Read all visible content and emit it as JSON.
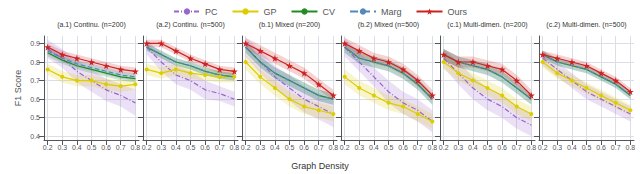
{
  "chart_data": [
    {
      "type": "line",
      "title": "(a.1) Continu. (n=200)",
      "xlabel": "Graph Density",
      "ylabel": "F1 Score",
      "legend": "top",
      "x": [
        0.2,
        0.3,
        0.4,
        0.5,
        0.6,
        0.7,
        0.8
      ],
      "xlim": [
        0.175,
        0.825
      ],
      "xticks": [
        0.2,
        0.3,
        0.4,
        0.5,
        0.6,
        0.7,
        0.8
      ],
      "ylim": [
        0.38,
        0.94
      ],
      "yticks": [
        0.4,
        0.5,
        0.6,
        0.7,
        0.8,
        0.9
      ],
      "grid": true,
      "series": [
        {
          "name": "PC",
          "color": "#9966cc",
          "line_style": "dashdot",
          "marker": "none",
          "values": [
            0.87,
            0.82,
            0.75,
            0.7,
            0.65,
            0.62,
            0.58
          ],
          "std": [
            0.05,
            0.05,
            0.06,
            0.06,
            0.06,
            0.06,
            0.07
          ]
        },
        {
          "name": "GP",
          "color": "#ddcc00",
          "line_style": "solid",
          "marker": "circle",
          "values": [
            0.76,
            0.72,
            0.7,
            0.7,
            0.68,
            0.67,
            0.68
          ],
          "std": [
            0.03,
            0.03,
            0.03,
            0.03,
            0.03,
            0.03,
            0.03
          ]
        },
        {
          "name": "CV",
          "color": "#228B22",
          "line_style": "solid",
          "marker": "none",
          "values": [
            0.85,
            0.81,
            0.78,
            0.76,
            0.74,
            0.72,
            0.71
          ],
          "std": [
            0.02,
            0.02,
            0.02,
            0.02,
            0.02,
            0.02,
            0.02
          ]
        },
        {
          "name": "Marg",
          "color": "#5588bb",
          "line_style": "dashed",
          "marker": "none",
          "values": [
            0.86,
            0.82,
            0.79,
            0.77,
            0.75,
            0.73,
            0.72
          ],
          "std": [
            0.02,
            0.02,
            0.02,
            0.02,
            0.02,
            0.02,
            0.02
          ]
        },
        {
          "name": "Ours",
          "color": "#cc2222",
          "line_style": "solid",
          "marker": "star",
          "values": [
            0.88,
            0.84,
            0.82,
            0.8,
            0.78,
            0.76,
            0.75
          ],
          "std": [
            0.02,
            0.02,
            0.02,
            0.02,
            0.02,
            0.02,
            0.02
          ]
        }
      ]
    },
    {
      "type": "line",
      "title": "(a.2) Continu. (n=500)",
      "tick_labels": "x",
      "x": [
        0.2,
        0.3,
        0.4,
        0.5,
        0.6,
        0.7,
        0.8
      ],
      "xlim": [
        0.175,
        0.825
      ],
      "xticks": [
        0.2,
        0.3,
        0.4,
        0.5,
        0.6,
        0.7,
        0.8
      ],
      "ylim": [
        0.38,
        0.94
      ],
      "yticks": [
        0.4,
        0.5,
        0.6,
        0.7,
        0.8,
        0.9
      ],
      "grid": true,
      "series": [
        {
          "name": "PC",
          "color": "#9966cc",
          "line_style": "dashdot",
          "marker": "none",
          "values": [
            0.88,
            0.8,
            0.73,
            0.7,
            0.65,
            0.63,
            0.6
          ],
          "std": [
            0.04,
            0.05,
            0.05,
            0.05,
            0.05,
            0.04,
            0.04
          ]
        },
        {
          "name": "GP",
          "color": "#ddcc00",
          "line_style": "solid",
          "marker": "circle",
          "values": [
            0.76,
            0.74,
            0.76,
            0.74,
            0.73,
            0.72,
            0.72
          ],
          "std": [
            0.03,
            0.03,
            0.03,
            0.03,
            0.03,
            0.03,
            0.03
          ]
        },
        {
          "name": "CV",
          "color": "#228B22",
          "line_style": "solid",
          "marker": "none",
          "values": [
            0.88,
            0.84,
            0.8,
            0.78,
            0.75,
            0.73,
            0.72
          ],
          "std": [
            0.02,
            0.02,
            0.02,
            0.02,
            0.02,
            0.02,
            0.02
          ]
        },
        {
          "name": "Marg",
          "color": "#5588bb",
          "line_style": "dashed",
          "marker": "none",
          "values": [
            0.88,
            0.84,
            0.8,
            0.78,
            0.75,
            0.73,
            0.72
          ],
          "std": [
            0.02,
            0.02,
            0.02,
            0.02,
            0.02,
            0.02,
            0.02
          ]
        },
        {
          "name": "Ours",
          "color": "#cc2222",
          "line_style": "solid",
          "marker": "star",
          "values": [
            0.9,
            0.9,
            0.86,
            0.82,
            0.79,
            0.76,
            0.75
          ],
          "std": [
            0.02,
            0.02,
            0.02,
            0.02,
            0.02,
            0.02,
            0.02
          ]
        }
      ]
    },
    {
      "type": "line",
      "title": "(b.1) Mixed (n=200)",
      "tick_labels": "x",
      "x": [
        0.2,
        0.3,
        0.4,
        0.5,
        0.6,
        0.7,
        0.8
      ],
      "xlim": [
        0.175,
        0.825
      ],
      "xticks": [
        0.2,
        0.3,
        0.4,
        0.5,
        0.6,
        0.7,
        0.8
      ],
      "ylim": [
        0.38,
        0.94
      ],
      "yticks": [
        0.4,
        0.5,
        0.6,
        0.7,
        0.8,
        0.9
      ],
      "grid": true,
      "series": [
        {
          "name": "PC",
          "color": "#9966cc",
          "line_style": "dashdot",
          "marker": "none",
          "values": [
            0.88,
            0.8,
            0.72,
            0.66,
            0.6,
            0.56,
            0.52
          ],
          "std": [
            0.05,
            0.06,
            0.06,
            0.07,
            0.07,
            0.07,
            0.07
          ]
        },
        {
          "name": "GP",
          "color": "#ddcc00",
          "line_style": "solid",
          "marker": "circle",
          "values": [
            0.8,
            0.72,
            0.66,
            0.6,
            0.56,
            0.54,
            0.52
          ],
          "std": [
            0.04,
            0.04,
            0.04,
            0.04,
            0.04,
            0.04,
            0.04
          ]
        },
        {
          "name": "CV",
          "color": "#228B22",
          "line_style": "solid",
          "marker": "none",
          "values": [
            0.88,
            0.8,
            0.74,
            0.7,
            0.66,
            0.62,
            0.6
          ],
          "std": [
            0.03,
            0.03,
            0.03,
            0.03,
            0.03,
            0.03,
            0.03
          ]
        },
        {
          "name": "Marg",
          "color": "#5588bb",
          "line_style": "dashed",
          "marker": "none",
          "values": [
            0.88,
            0.8,
            0.74,
            0.7,
            0.66,
            0.62,
            0.6
          ],
          "std": [
            0.03,
            0.03,
            0.03,
            0.03,
            0.03,
            0.03,
            0.03
          ]
        },
        {
          "name": "Ours",
          "color": "#cc2222",
          "line_style": "solid",
          "marker": "star",
          "values": [
            0.9,
            0.86,
            0.82,
            0.78,
            0.74,
            0.68,
            0.62
          ],
          "std": [
            0.03,
            0.03,
            0.03,
            0.03,
            0.03,
            0.03,
            0.03
          ]
        }
      ]
    },
    {
      "type": "line",
      "title": "(b.2) Mixed (n=500)",
      "tick_labels": "x",
      "x": [
        0.2,
        0.3,
        0.4,
        0.5,
        0.6,
        0.7,
        0.8
      ],
      "xlim": [
        0.175,
        0.825
      ],
      "xticks": [
        0.2,
        0.3,
        0.4,
        0.5,
        0.6,
        0.7,
        0.8
      ],
      "ylim": [
        0.38,
        0.94
      ],
      "yticks": [
        0.4,
        0.5,
        0.6,
        0.7,
        0.8,
        0.9
      ],
      "grid": true,
      "series": [
        {
          "name": "PC",
          "color": "#9966cc",
          "line_style": "dashdot",
          "marker": "none",
          "values": [
            0.88,
            0.8,
            0.72,
            0.64,
            0.58,
            0.54,
            0.48
          ],
          "std": [
            0.05,
            0.05,
            0.05,
            0.06,
            0.06,
            0.06,
            0.06
          ]
        },
        {
          "name": "GP",
          "color": "#ddcc00",
          "line_style": "solid",
          "marker": "circle",
          "values": [
            0.72,
            0.66,
            0.62,
            0.58,
            0.56,
            0.52,
            0.48
          ],
          "std": [
            0.04,
            0.04,
            0.04,
            0.04,
            0.04,
            0.04,
            0.04
          ]
        },
        {
          "name": "CV",
          "color": "#228B22",
          "line_style": "solid",
          "marker": "none",
          "values": [
            0.88,
            0.82,
            0.8,
            0.78,
            0.74,
            0.68,
            0.6
          ],
          "std": [
            0.03,
            0.03,
            0.03,
            0.03,
            0.03,
            0.03,
            0.03
          ]
        },
        {
          "name": "Marg",
          "color": "#5588bb",
          "line_style": "dashed",
          "marker": "none",
          "values": [
            0.88,
            0.82,
            0.8,
            0.78,
            0.74,
            0.68,
            0.6
          ],
          "std": [
            0.03,
            0.03,
            0.03,
            0.03,
            0.03,
            0.03,
            0.03
          ]
        },
        {
          "name": "Ours",
          "color": "#cc2222",
          "line_style": "solid",
          "marker": "star",
          "values": [
            0.9,
            0.86,
            0.82,
            0.8,
            0.76,
            0.7,
            0.62
          ],
          "std": [
            0.03,
            0.03,
            0.03,
            0.03,
            0.03,
            0.03,
            0.03
          ]
        }
      ]
    },
    {
      "type": "line",
      "title": "(c.1) Multi-dimen. (n=200)",
      "tick_labels": "x",
      "x": [
        0.2,
        0.3,
        0.4,
        0.5,
        0.6,
        0.7,
        0.8
      ],
      "xlim": [
        0.175,
        0.825
      ],
      "xticks": [
        0.2,
        0.3,
        0.4,
        0.5,
        0.6,
        0.7,
        0.8
      ],
      "ylim": [
        0.38,
        0.94
      ],
      "yticks": [
        0.4,
        0.5,
        0.6,
        0.7,
        0.8,
        0.9
      ],
      "grid": true,
      "series": [
        {
          "name": "PC",
          "color": "#9966cc",
          "line_style": "dashdot",
          "marker": "none",
          "values": [
            0.82,
            0.74,
            0.66,
            0.6,
            0.56,
            0.5,
            0.46
          ],
          "std": [
            0.05,
            0.06,
            0.06,
            0.06,
            0.06,
            0.06,
            0.06
          ]
        },
        {
          "name": "GP",
          "color": "#ddcc00",
          "line_style": "solid",
          "marker": "circle",
          "values": [
            0.8,
            0.74,
            0.7,
            0.66,
            0.62,
            0.56,
            0.52
          ],
          "std": [
            0.04,
            0.04,
            0.04,
            0.04,
            0.04,
            0.04,
            0.04
          ]
        },
        {
          "name": "CV",
          "color": "#228B22",
          "line_style": "solid",
          "marker": "none",
          "values": [
            0.84,
            0.8,
            0.78,
            0.76,
            0.72,
            0.66,
            0.6
          ],
          "std": [
            0.03,
            0.03,
            0.03,
            0.03,
            0.03,
            0.03,
            0.03
          ]
        },
        {
          "name": "Marg",
          "color": "#5588bb",
          "line_style": "dashed",
          "marker": "none",
          "values": [
            0.84,
            0.8,
            0.78,
            0.76,
            0.72,
            0.66,
            0.6
          ],
          "std": [
            0.03,
            0.03,
            0.03,
            0.03,
            0.03,
            0.03,
            0.03
          ]
        },
        {
          "name": "Ours",
          "color": "#cc2222",
          "line_style": "solid",
          "marker": "star",
          "values": [
            0.84,
            0.8,
            0.8,
            0.78,
            0.76,
            0.7,
            0.62
          ],
          "std": [
            0.03,
            0.03,
            0.03,
            0.03,
            0.03,
            0.03,
            0.03
          ]
        }
      ]
    },
    {
      "type": "line",
      "title": "(c.2) Multi-dimen. (n=500)",
      "tick_labels": "x",
      "x": [
        0.2,
        0.3,
        0.4,
        0.5,
        0.6,
        0.7,
        0.8
      ],
      "xlim": [
        0.175,
        0.825
      ],
      "xticks": [
        0.2,
        0.3,
        0.4,
        0.5,
        0.6,
        0.7,
        0.8
      ],
      "ylim": [
        0.38,
        0.94
      ],
      "yticks": [
        0.4,
        0.5,
        0.6,
        0.7,
        0.8,
        0.9
      ],
      "grid": true,
      "series": [
        {
          "name": "PC",
          "color": "#9966cc",
          "line_style": "dashdot",
          "marker": "none",
          "values": [
            0.82,
            0.76,
            0.7,
            0.64,
            0.6,
            0.56,
            0.52
          ],
          "std": [
            0.04,
            0.04,
            0.04,
            0.04,
            0.04,
            0.04,
            0.04
          ]
        },
        {
          "name": "GP",
          "color": "#ddcc00",
          "line_style": "solid",
          "marker": "circle",
          "values": [
            0.8,
            0.74,
            0.7,
            0.66,
            0.62,
            0.58,
            0.54
          ],
          "std": [
            0.03,
            0.03,
            0.03,
            0.03,
            0.03,
            0.03,
            0.03
          ]
        },
        {
          "name": "CV",
          "color": "#228B22",
          "line_style": "solid",
          "marker": "none",
          "values": [
            0.84,
            0.8,
            0.78,
            0.76,
            0.72,
            0.68,
            0.62
          ],
          "std": [
            0.02,
            0.02,
            0.02,
            0.02,
            0.02,
            0.02,
            0.02
          ]
        },
        {
          "name": "Marg",
          "color": "#5588bb",
          "line_style": "dashed",
          "marker": "none",
          "values": [
            0.84,
            0.8,
            0.78,
            0.76,
            0.72,
            0.68,
            0.62
          ],
          "std": [
            0.02,
            0.02,
            0.02,
            0.02,
            0.02,
            0.02,
            0.02
          ]
        },
        {
          "name": "Ours",
          "color": "#cc2222",
          "line_style": "solid",
          "marker": "star",
          "values": [
            0.84,
            0.82,
            0.8,
            0.78,
            0.74,
            0.7,
            0.64
          ],
          "std": [
            0.02,
            0.02,
            0.02,
            0.02,
            0.02,
            0.02,
            0.02
          ]
        }
      ]
    }
  ]
}
